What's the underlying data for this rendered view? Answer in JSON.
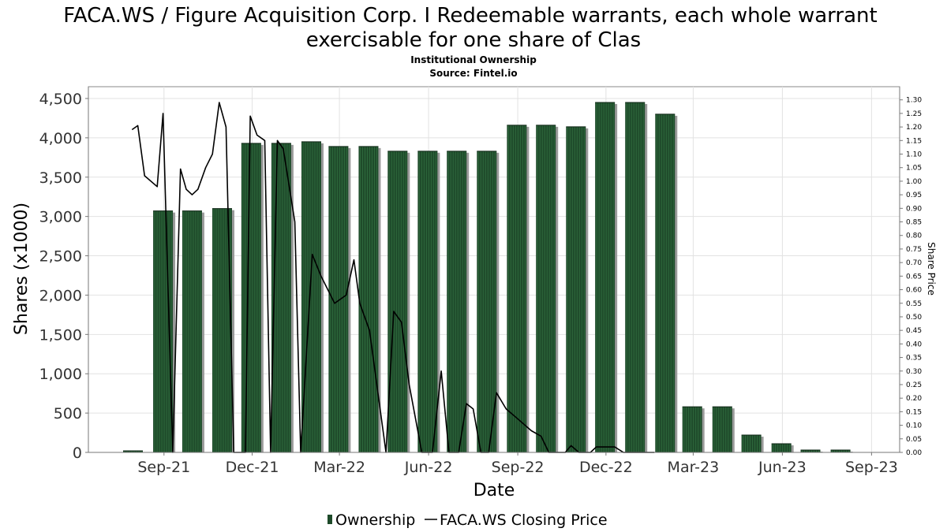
{
  "chart_data": {
    "type": "bar",
    "title": "FACA.WS / Figure Acquisition Corp. I Redeemable warrants, each whole warrant",
    "title_line2": "exercisable for one share of Clas",
    "subtitle": "Institutional Ownership",
    "source": "Source: Fintel.io",
    "xlabel": "Date",
    "ylabel": "Shares (x1000)",
    "y2label": "Share Price",
    "ylim": [
      0,
      4650
    ],
    "y2lim": [
      0,
      1.3485
    ],
    "xlim": [
      "2021-06-15",
      "2023-09-30"
    ],
    "y_ticks": [
      "0",
      "500",
      "1,000",
      "1,500",
      "2,000",
      "2,500",
      "3,000",
      "3,500",
      "4,000",
      "4,500"
    ],
    "y_tick_values": [
      0,
      500,
      1000,
      1500,
      2000,
      2500,
      3000,
      3500,
      4000,
      4500
    ],
    "y2_ticks": [
      "0.00",
      "0.05",
      "0.10",
      "0.15",
      "0.20",
      "0.25",
      "0.30",
      "0.35",
      "0.40",
      "0.45",
      "0.50",
      "0.55",
      "0.60",
      "0.65",
      "0.70",
      "0.75",
      "0.80",
      "0.85",
      "0.90",
      "0.95",
      "1.00",
      "1.05",
      "1.10",
      "1.15",
      "1.20",
      "1.25",
      "1.30"
    ],
    "x_ticks": [
      {
        "label": "Sep-21",
        "date": "2021-09-01"
      },
      {
        "label": "Dec-21",
        "date": "2021-12-01"
      },
      {
        "label": "Mar-22",
        "date": "2022-03-01"
      },
      {
        "label": "Jun-22",
        "date": "2022-06-01"
      },
      {
        "label": "Sep-22",
        "date": "2022-09-01"
      },
      {
        "label": "Dec-22",
        "date": "2022-12-01"
      },
      {
        "label": "Mar-23",
        "date": "2023-03-01"
      },
      {
        "label": "Jun-23",
        "date": "2023-06-01"
      },
      {
        "label": "Sep-23",
        "date": "2023-09-01"
      }
    ],
    "grid": true,
    "legend_placement": "bottom-center",
    "series": [
      {
        "name": "Ownership",
        "kind": "bar",
        "color": "#1e4a2a",
        "points": [
          {
            "date": "2021-07-31",
            "value": 20
          },
          {
            "date": "2021-08-31",
            "value": 3070
          },
          {
            "date": "2021-09-30",
            "value": 3070
          },
          {
            "date": "2021-10-31",
            "value": 3100
          },
          {
            "date": "2021-11-30",
            "value": 3930
          },
          {
            "date": "2021-12-31",
            "value": 3930
          },
          {
            "date": "2022-01-31",
            "value": 3950
          },
          {
            "date": "2022-02-28",
            "value": 3890
          },
          {
            "date": "2022-03-31",
            "value": 3890
          },
          {
            "date": "2022-04-30",
            "value": 3830
          },
          {
            "date": "2022-05-31",
            "value": 3830
          },
          {
            "date": "2022-06-30",
            "value": 3830
          },
          {
            "date": "2022-07-31",
            "value": 3830
          },
          {
            "date": "2022-08-31",
            "value": 4160
          },
          {
            "date": "2022-09-30",
            "value": 4160
          },
          {
            "date": "2022-10-31",
            "value": 4140
          },
          {
            "date": "2022-11-30",
            "value": 4450
          },
          {
            "date": "2022-12-31",
            "value": 4450
          },
          {
            "date": "2023-01-31",
            "value": 4300
          },
          {
            "date": "2023-02-28",
            "value": 580
          },
          {
            "date": "2023-03-31",
            "value": 580
          },
          {
            "date": "2023-04-30",
            "value": 220
          },
          {
            "date": "2023-05-31",
            "value": 110
          },
          {
            "date": "2023-06-30",
            "value": 30
          },
          {
            "date": "2023-07-31",
            "value": 30
          }
        ]
      },
      {
        "name": "FACA.WS Closing Price",
        "kind": "line",
        "color": "#000000",
        "axis": "right",
        "points": [
          {
            "date": "2021-07-30",
            "value": 1.19
          },
          {
            "date": "2021-08-05",
            "value": 1.205
          },
          {
            "date": "2021-08-12",
            "value": 1.02
          },
          {
            "date": "2021-08-25",
            "value": 0.98
          },
          {
            "date": "2021-08-31",
            "value": 1.25
          },
          {
            "date": "2021-09-10",
            "value": 0.0
          },
          {
            "date": "2021-09-18",
            "value": 1.045
          },
          {
            "date": "2021-09-24",
            "value": 0.97
          },
          {
            "date": "2021-09-30",
            "value": 0.95
          },
          {
            "date": "2021-10-06",
            "value": 0.97
          },
          {
            "date": "2021-10-14",
            "value": 1.05
          },
          {
            "date": "2021-10-21",
            "value": 1.1
          },
          {
            "date": "2021-10-28",
            "value": 1.29
          },
          {
            "date": "2021-11-04",
            "value": 1.2
          },
          {
            "date": "2021-11-12",
            "value": 0.0
          },
          {
            "date": "2021-11-24",
            "value": 0.0
          },
          {
            "date": "2021-11-29",
            "value": 1.24
          },
          {
            "date": "2021-12-06",
            "value": 1.17
          },
          {
            "date": "2021-12-14",
            "value": 1.15
          },
          {
            "date": "2021-12-20",
            "value": 0.0
          },
          {
            "date": "2021-12-27",
            "value": 1.15
          },
          {
            "date": "2022-01-02",
            "value": 1.12
          },
          {
            "date": "2022-01-14",
            "value": 0.85
          },
          {
            "date": "2022-01-20",
            "value": 0.0
          },
          {
            "date": "2022-02-01",
            "value": 0.73
          },
          {
            "date": "2022-02-10",
            "value": 0.65
          },
          {
            "date": "2022-02-24",
            "value": 0.55
          },
          {
            "date": "2022-03-08",
            "value": 0.58
          },
          {
            "date": "2022-03-16",
            "value": 0.71
          },
          {
            "date": "2022-03-22",
            "value": 0.55
          },
          {
            "date": "2022-04-01",
            "value": 0.45
          },
          {
            "date": "2022-04-18",
            "value": 0.0
          },
          {
            "date": "2022-04-26",
            "value": 0.52
          },
          {
            "date": "2022-05-04",
            "value": 0.48
          },
          {
            "date": "2022-05-12",
            "value": 0.25
          },
          {
            "date": "2022-05-25",
            "value": 0.0
          },
          {
            "date": "2022-06-05",
            "value": 0.0
          },
          {
            "date": "2022-06-14",
            "value": 0.3
          },
          {
            "date": "2022-06-22",
            "value": 0.0
          },
          {
            "date": "2022-07-02",
            "value": 0.0
          },
          {
            "date": "2022-07-10",
            "value": 0.18
          },
          {
            "date": "2022-07-17",
            "value": 0.16
          },
          {
            "date": "2022-07-25",
            "value": 0.0
          },
          {
            "date": "2022-08-02",
            "value": 0.0
          },
          {
            "date": "2022-08-10",
            "value": 0.22
          },
          {
            "date": "2022-08-20",
            "value": 0.16
          },
          {
            "date": "2022-08-30",
            "value": 0.13
          },
          {
            "date": "2022-09-15",
            "value": 0.08
          },
          {
            "date": "2022-09-25",
            "value": 0.06
          },
          {
            "date": "2022-10-03",
            "value": 0.0
          },
          {
            "date": "2022-10-20",
            "value": 0.0
          },
          {
            "date": "2022-10-26",
            "value": 0.025
          },
          {
            "date": "2022-11-03",
            "value": 0.0
          },
          {
            "date": "2022-11-15",
            "value": 0.0
          },
          {
            "date": "2022-11-21",
            "value": 0.02
          },
          {
            "date": "2022-12-10",
            "value": 0.02
          },
          {
            "date": "2022-12-19",
            "value": 0.0
          },
          {
            "date": "2023-01-20",
            "value": 0.0
          }
        ]
      }
    ]
  }
}
